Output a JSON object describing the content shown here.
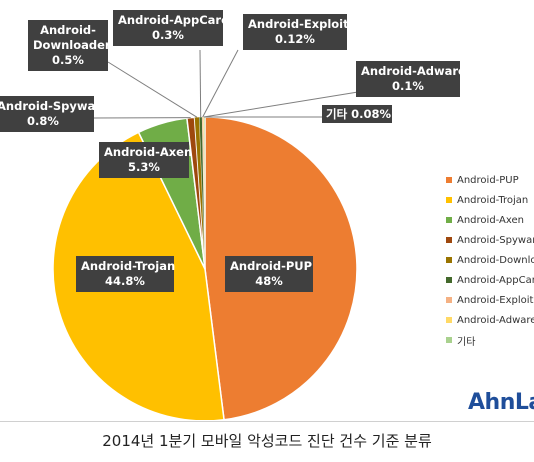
{
  "chart_data": {
    "type": "pie",
    "title": "",
    "slices": [
      {
        "label": "Android-PUP",
        "value": 48,
        "value_label": "48%",
        "color": "#ED7D31"
      },
      {
        "label": "Android-Trojan",
        "value": 44.8,
        "value_label": "44.8%",
        "color": "#FFC000"
      },
      {
        "label": "Android-Axen",
        "value": 5.3,
        "value_label": "5.3%",
        "color": "#70AD47"
      },
      {
        "label": "Android-Spyware",
        "value": 0.8,
        "value_label": "0.8%",
        "color": "#9E480E"
      },
      {
        "label": "Android-Downloader",
        "value": 0.5,
        "value_label": "0.5%",
        "color": "#997300"
      },
      {
        "label": "Android-AppCare",
        "value": 0.3,
        "value_label": "0.3%",
        "color": "#43682B"
      },
      {
        "label": "Android-Exploit",
        "value": 0.12,
        "value_label": "0.12%",
        "color": "#F4B183"
      },
      {
        "label": "Android-Adware",
        "value": 0.1,
        "value_label": "0.1%",
        "color": "#FFD966"
      },
      {
        "label": "기타",
        "value": 0.08,
        "value_label": "0.08%",
        "color": "#A9D18E"
      }
    ],
    "legend_position": "right",
    "legend_entries": [
      "Android-PUP",
      "Android-Trojan",
      "Android-Axen",
      "Android-Spyware",
      "Android-Downloader",
      "Android-AppCare",
      "Android-Exploit",
      "Android-Adware",
      "기타"
    ]
  },
  "callouts": {
    "pup": {
      "name": "Android-PUP",
      "pct": "48%"
    },
    "trojan": {
      "name": "Android-Trojan",
      "pct": "44.8%"
    },
    "axen": {
      "name": "Android-Axen",
      "pct": "5.3%"
    },
    "spyware": {
      "name": "Android-Spyware",
      "pct": "0.8%"
    },
    "downloader": {
      "name_line1": "Android-",
      "name_line2": "Downloader",
      "pct": "0.5%"
    },
    "appcare": {
      "name": "Android-AppCare",
      "pct": "0.3%"
    },
    "exploit": {
      "name": "Android-Exploit",
      "pct": "0.12%"
    },
    "adware": {
      "name": "Android-Adware",
      "pct": "0.1%"
    },
    "etc": {
      "text": "기타 0.08%"
    }
  },
  "logo": {
    "text": "AhnLab"
  },
  "caption": "2014년 1분기 모바일 악성코드 진단 건수 기준 분류"
}
